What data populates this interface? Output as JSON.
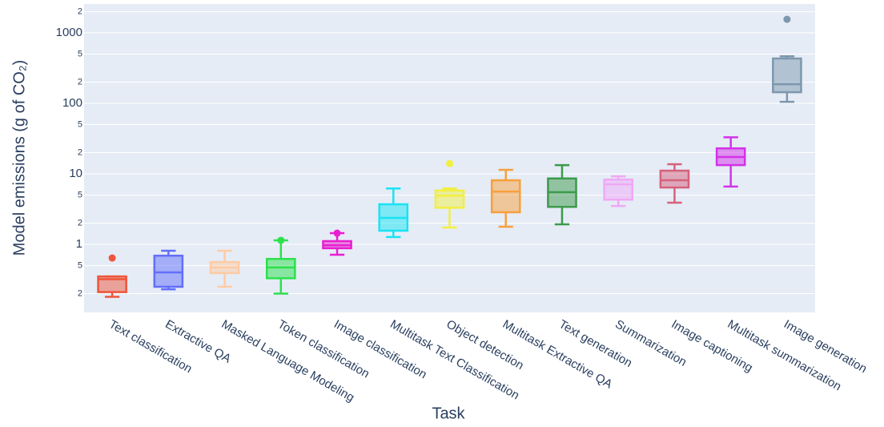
{
  "chart_data": {
    "type": "box",
    "y_label": "Model emissions (g of CO₂)",
    "x_label": "Task",
    "log_y": true,
    "grid": true,
    "ylim": [
      0.108,
      2570
    ],
    "yticks": [
      {
        "value": 0.2,
        "label": "2"
      },
      {
        "value": 0.5,
        "label": "5"
      },
      1,
      {
        "value": 2,
        "label": "2"
      },
      {
        "value": 5,
        "label": "5"
      },
      10,
      {
        "value": 20,
        "label": "2"
      },
      {
        "value": 50,
        "label": "5"
      },
      100,
      {
        "value": 200,
        "label": "2"
      },
      {
        "value": 500,
        "label": "5"
      },
      1000,
      {
        "value": 2000,
        "label": "2"
      }
    ],
    "categories": [
      "Text classification",
      "Extractive QA",
      "Masked Language Modeling",
      "Token classification",
      "Image classification",
      "Multitask Text Classification",
      "Object detection",
      "Multitask Extractive QA",
      "Text generation",
      "Summarization",
      "Image captioning",
      "Multitask summarization",
      "Image generation"
    ],
    "boxes": [
      {
        "color": "#ef553b",
        "min": 0.18,
        "q1": 0.21,
        "median": 0.32,
        "q3": 0.35,
        "max": 0.35,
        "outliers": [
          0.64
        ]
      },
      {
        "color": "#636efa",
        "min": 0.23,
        "q1": 0.25,
        "median": 0.4,
        "q3": 0.69,
        "max": 0.81,
        "outliers": []
      },
      {
        "color": "#fecba4",
        "min": 0.25,
        "q1": 0.39,
        "median": 0.47,
        "q3": 0.56,
        "max": 0.81,
        "outliers": []
      },
      {
        "color": "#2ee04d",
        "min": 0.2,
        "q1": 0.33,
        "median": 0.47,
        "q3": 0.62,
        "max": 1.14,
        "outliers": [
          1.14
        ]
      },
      {
        "color": "#e81fd0",
        "min": 0.71,
        "q1": 0.88,
        "median": 0.97,
        "q3": 1.11,
        "max": 1.44,
        "outliers": [
          1.44
        ]
      },
      {
        "color": "#19e3f3",
        "min": 1.27,
        "q1": 1.56,
        "median": 2.37,
        "q3": 3.7,
        "max": 6.2,
        "outliers": []
      },
      {
        "color": "#f2ef42",
        "min": 1.73,
        "q1": 3.3,
        "median": 4.9,
        "q3": 5.8,
        "max": 6.2,
        "outliers": [
          14
        ]
      },
      {
        "color": "#f7a03c",
        "min": 1.78,
        "q1": 2.85,
        "median": 5.6,
        "q3": 8.1,
        "max": 11.4,
        "outliers": []
      },
      {
        "color": "#3d9a4b",
        "min": 1.92,
        "q1": 3.4,
        "median": 5.5,
        "q3": 8.6,
        "max": 13.3,
        "outliers": []
      },
      {
        "color": "#f0a8f5",
        "min": 3.5,
        "q1": 4.3,
        "median": 7.1,
        "q3": 8.3,
        "max": 9.2,
        "outliers": []
      },
      {
        "color": "#d6617c",
        "min": 3.9,
        "q1": 6.4,
        "median": 8.1,
        "q3": 11.1,
        "max": 13.7,
        "outliers": []
      },
      {
        "color": "#d332e8",
        "min": 6.6,
        "q1": 13.3,
        "median": 17.3,
        "q3": 23,
        "max": 33,
        "outliers": []
      },
      {
        "color": "#7d97ad",
        "min": 105,
        "q1": 144,
        "median": 187,
        "q3": 433,
        "max": 466,
        "outliers": [
          1560
        ]
      }
    ]
  }
}
